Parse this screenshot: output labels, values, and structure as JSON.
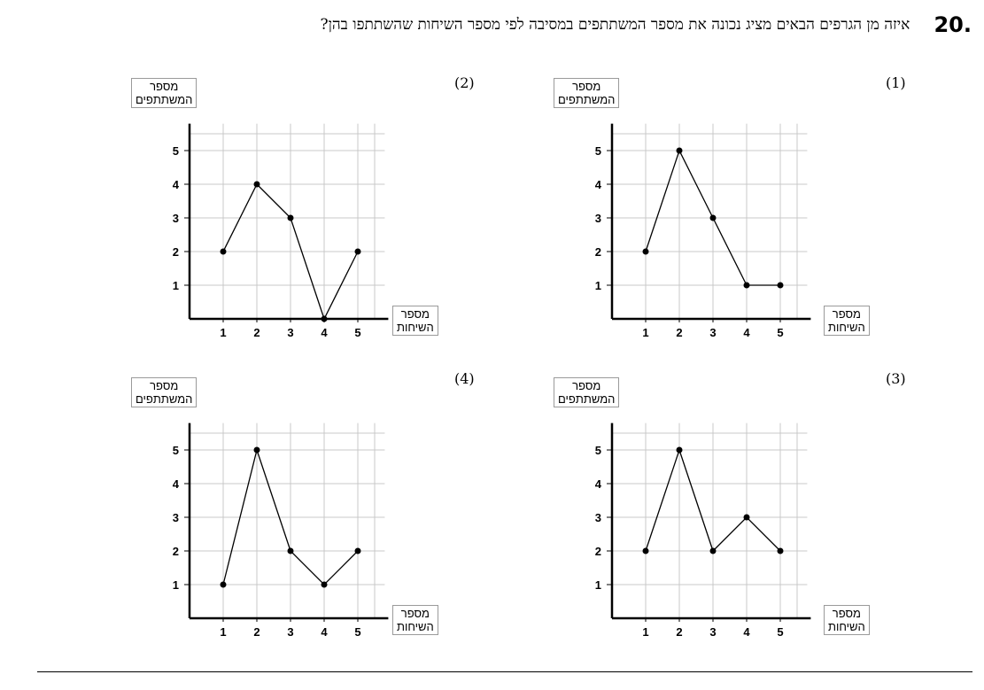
{
  "question": {
    "number": ".20",
    "text": "איזה מן הגרפים הבאים מציג נכונה את מספר המשתתפים במסיבה לפי מספר השיחות שהשתתפו בהן?"
  },
  "chart_data": [
    {
      "option": "(1)",
      "type": "line",
      "ylabel": [
        "מספר",
        "המשתתפים"
      ],
      "xlabel": [
        "מספר",
        "השיחות"
      ],
      "x": [
        1,
        2,
        3,
        4,
        5
      ],
      "values": [
        2,
        5,
        3,
        1,
        1
      ],
      "xticks": [
        "1",
        "2",
        "3",
        "4",
        "5"
      ],
      "yticks": [
        "1",
        "2",
        "3",
        "4",
        "5"
      ],
      "xlim": [
        0,
        5.5
      ],
      "ylim": [
        0,
        5.5
      ],
      "grid": true
    },
    {
      "option": "(2)",
      "type": "line",
      "ylabel": [
        "מספר",
        "המשתתפים"
      ],
      "xlabel": [
        "מספר",
        "השיחות"
      ],
      "x": [
        1,
        2,
        3,
        4,
        5
      ],
      "values": [
        2,
        4,
        3,
        0,
        2
      ],
      "xticks": [
        "1",
        "2",
        "3",
        "4",
        "5"
      ],
      "yticks": [
        "1",
        "2",
        "3",
        "4",
        "5"
      ],
      "xlim": [
        0,
        5.5
      ],
      "ylim": [
        0,
        5.5
      ],
      "grid": true
    },
    {
      "option": "(3)",
      "type": "line",
      "ylabel": [
        "מספר",
        "המשתתפים"
      ],
      "xlabel": [
        "מספר",
        "השיחות"
      ],
      "x": [
        1,
        2,
        3,
        4,
        5
      ],
      "values": [
        2,
        5,
        2,
        3,
        2
      ],
      "xticks": [
        "1",
        "2",
        "3",
        "4",
        "5"
      ],
      "yticks": [
        "1",
        "2",
        "3",
        "4",
        "5"
      ],
      "xlim": [
        0,
        5.5
      ],
      "ylim": [
        0,
        5.5
      ],
      "grid": true
    },
    {
      "option": "(4)",
      "type": "line",
      "ylabel": [
        "מספר",
        "המשתתפים"
      ],
      "xlabel": [
        "מספר",
        "השיחות"
      ],
      "x": [
        1,
        2,
        3,
        4,
        5
      ],
      "values": [
        1,
        5,
        2,
        1,
        2
      ],
      "xticks": [
        "1",
        "2",
        "3",
        "4",
        "5"
      ],
      "yticks": [
        "1",
        "2",
        "3",
        "4",
        "5"
      ],
      "xlim": [
        0,
        5.5
      ],
      "ylim": [
        0,
        5.5
      ],
      "grid": true
    }
  ]
}
